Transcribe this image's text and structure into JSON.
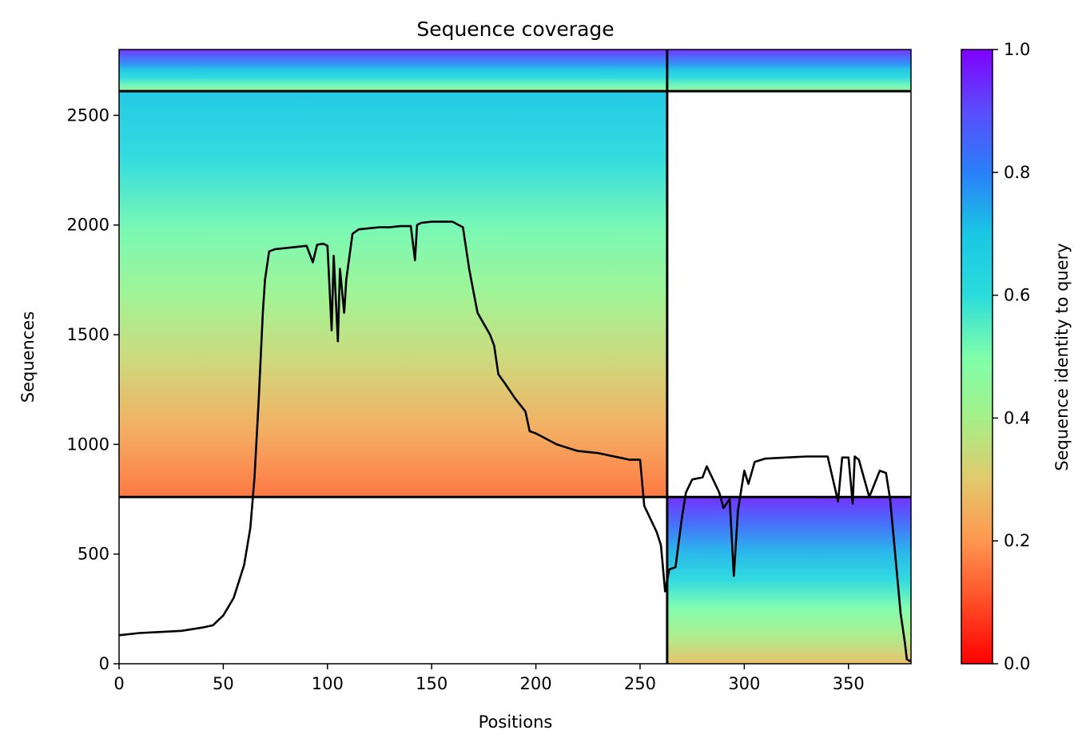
{
  "chart_data": {
    "type": "heatmap",
    "title": "Sequence coverage",
    "xlabel": "Positions",
    "ylabel": "Sequences",
    "xlim": [
      0,
      380
    ],
    "ylim": [
      0,
      2800
    ],
    "xticks": [
      0,
      50,
      100,
      150,
      200,
      250,
      300,
      350
    ],
    "yticks": [
      0,
      500,
      1000,
      1500,
      2000,
      2500
    ],
    "colorbar": {
      "label": "Sequence identity to query",
      "range": [
        0.0,
        1.0
      ],
      "ticks": [
        "0.0",
        "0.2",
        "0.4",
        "0.6",
        "0.8",
        "1.0"
      ],
      "colormap": "rainbow_r"
    },
    "blocks": [
      {
        "name": "block-1",
        "x": [
          0,
          263
        ],
        "y": [
          2610,
          2800
        ],
        "identity_top": 0.95,
        "identity_bottom": 0.45
      },
      {
        "name": "block-2",
        "x": [
          263,
          380
        ],
        "y": [
          2610,
          2800
        ],
        "identity_top": 0.95,
        "identity_bottom": 0.45
      },
      {
        "name": "block-3",
        "x": [
          0,
          263
        ],
        "y": [
          760,
          2610
        ],
        "identity_top": 0.7,
        "identity_bottom": 0.15
      },
      {
        "name": "block-4",
        "x": [
          263,
          380
        ],
        "y": [
          0,
          760
        ],
        "identity_top": 0.95,
        "identity_bottom": 0.28
      }
    ],
    "divider_lines": {
      "x": [
        263
      ],
      "y": [
        760,
        2610
      ]
    },
    "coverage_line": {
      "x": [
        0,
        10,
        20,
        30,
        40,
        45,
        50,
        55,
        60,
        63,
        65,
        67,
        69,
        70,
        72,
        75,
        80,
        85,
        90,
        93,
        95,
        98,
        100,
        102,
        103,
        105,
        106,
        108,
        109,
        112,
        115,
        120,
        125,
        130,
        135,
        140,
        142,
        143,
        145,
        150,
        160,
        165,
        168,
        170,
        172,
        175,
        178,
        180,
        182,
        185,
        190,
        195,
        197,
        200,
        210,
        220,
        230,
        235,
        240,
        245,
        250,
        252,
        255,
        258,
        260,
        262,
        264,
        267,
        270,
        272,
        275,
        280,
        282,
        285,
        288,
        290,
        293,
        295,
        297,
        300,
        302,
        305,
        310,
        320,
        330,
        335,
        340,
        345,
        347,
        350,
        352,
        353,
        355,
        360,
        365,
        368,
        370,
        375,
        377,
        378,
        380
      ],
      "y": [
        130,
        140,
        145,
        150,
        165,
        175,
        220,
        300,
        450,
        620,
        850,
        1200,
        1600,
        1750,
        1880,
        1890,
        1895,
        1900,
        1905,
        1830,
        1910,
        1915,
        1905,
        1520,
        1860,
        1470,
        1800,
        1600,
        1750,
        1960,
        1980,
        1985,
        1990,
        1990,
        1995,
        1995,
        1840,
        2000,
        2010,
        2015,
        2015,
        1990,
        1800,
        1700,
        1600,
        1550,
        1500,
        1450,
        1320,
        1280,
        1210,
        1150,
        1060,
        1050,
        1000,
        970,
        960,
        950,
        940,
        930,
        930,
        720,
        660,
        600,
        540,
        330,
        430,
        440,
        660,
        780,
        840,
        850,
        900,
        840,
        780,
        710,
        750,
        400,
        700,
        880,
        820,
        920,
        935,
        940,
        945,
        945,
        945,
        740,
        940,
        940,
        730,
        945,
        930,
        760,
        880,
        870,
        750,
        230,
        100,
        20,
        10
      ]
    }
  }
}
